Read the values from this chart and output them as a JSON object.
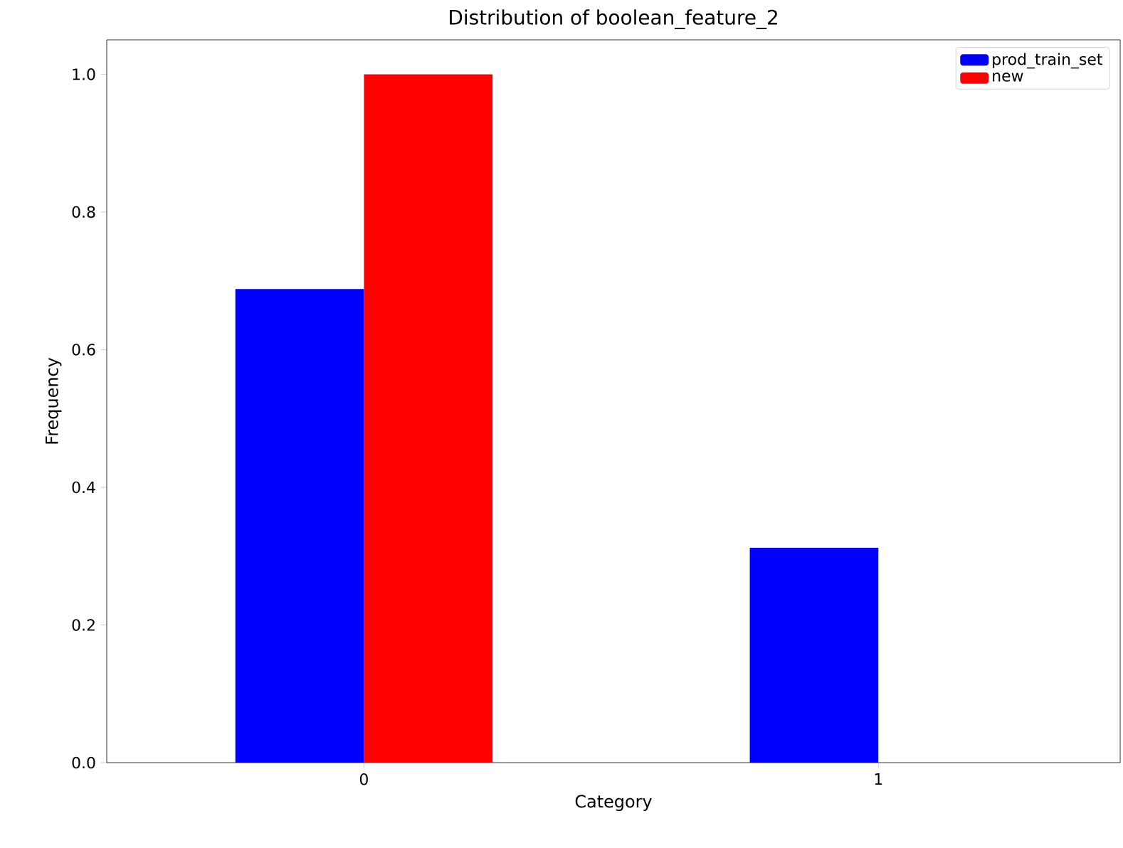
{
  "chart_data": {
    "type": "bar",
    "title": "Distribution of boolean_feature_2",
    "xlabel": "Category",
    "ylabel": "Frequency",
    "categories": [
      "0",
      "1"
    ],
    "series": [
      {
        "name": "prod_train_set",
        "color": "#0000ff",
        "values": [
          0.688,
          0.312
        ]
      },
      {
        "name": "new",
        "color": "#ff0000",
        "values": [
          1.0,
          0.0
        ]
      }
    ],
    "ylim": [
      0,
      1.05
    ],
    "yticks": [
      {
        "value": 0,
        "label": "0.0"
      },
      {
        "value": 0.2,
        "label": "0.2"
      },
      {
        "value": 0.4,
        "label": "0.4"
      },
      {
        "value": 0.6,
        "label": "0.6"
      },
      {
        "value": 0.8,
        "label": "0.8"
      },
      {
        "value": 1.0,
        "label": "1.0"
      }
    ],
    "legend": "top right"
  }
}
